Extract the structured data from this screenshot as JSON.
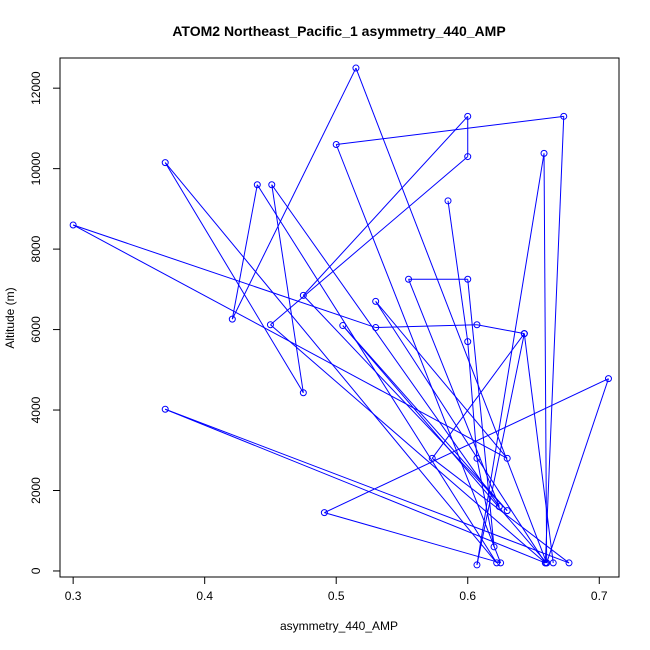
{
  "chart_data": {
    "type": "line",
    "title": "ATOM2 Northeast_Pacific_1 asymmetry_440_AMP",
    "xlabel": "asymmetry_440_AMP",
    "ylabel": "Altitude (m)",
    "xlim": [
      0.29,
      0.715
    ],
    "ylim": [
      -150,
      12750
    ],
    "x_ticks": [
      0.3,
      0.4,
      0.5,
      0.6,
      0.7
    ],
    "x_tick_labels": [
      "0.3",
      "0.4",
      "0.5",
      "0.6",
      "0.7"
    ],
    "y_ticks": [
      0,
      2000,
      4000,
      6000,
      8000,
      10000,
      12000
    ],
    "y_tick_labels": [
      "0",
      "2000",
      "4000",
      "6000",
      "8000",
      "10000",
      "12000"
    ],
    "color": "#0000ff",
    "marker": "open-circle",
    "grid": false,
    "series": [
      {
        "points": [
          [
            0.585,
            9200
          ],
          [
            0.6,
            5700
          ],
          [
            0.607,
            2800
          ],
          [
            0.62,
            600
          ],
          [
            0.6,
            7250
          ],
          [
            0.555,
            7250
          ],
          [
            0.624,
            1600
          ],
          [
            0.451,
            9600
          ],
          [
            0.475,
            4430
          ],
          [
            0.37,
            10150
          ],
          [
            0.622,
            200
          ],
          [
            0.44,
            9600
          ],
          [
            0.421,
            6260
          ],
          [
            0.515,
            12500
          ],
          [
            0.66,
            200
          ],
          [
            0.505,
            6100
          ],
          [
            0.63,
            1500
          ],
          [
            0.475,
            6850
          ],
          [
            0.6,
            11300
          ],
          [
            0.6,
            10300
          ],
          [
            0.45,
            6120
          ],
          [
            0.659,
            200
          ],
          [
            0.53,
            6700
          ],
          [
            0.63,
            2800
          ],
          [
            0.3,
            8600
          ],
          [
            0.53,
            6050
          ],
          [
            0.607,
            6120
          ],
          [
            0.643,
            5900
          ],
          [
            0.607,
            150
          ],
          [
            0.658,
            10380
          ],
          [
            0.66,
            200
          ],
          [
            0.707,
            4780
          ],
          [
            0.491,
            1450
          ],
          [
            0.625,
            200
          ],
          [
            0.5,
            10600
          ],
          [
            0.673,
            11300
          ],
          [
            0.659,
            200
          ],
          [
            0.37,
            4020
          ],
          [
            0.677,
            200
          ],
          [
            0.573,
            2800
          ],
          [
            0.643,
            5900
          ],
          [
            0.665,
            200
          ]
        ]
      }
    ]
  }
}
